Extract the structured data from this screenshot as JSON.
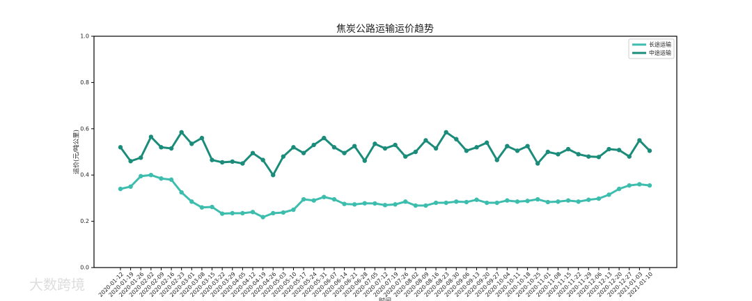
{
  "chart_data": {
    "type": "line",
    "title": "焦炭公路运输运价趋势",
    "x_label": "时间",
    "y_label": "运价(元/吨公里)",
    "watermark": "大数跨境",
    "categories": [
      "2020-01-12",
      "2020-01-19",
      "2020-01-26",
      "2020-02-02",
      "2020-02-09",
      "2020-02-16",
      "2020-02-23",
      "2020-03-01",
      "2020-03-08",
      "2020-03-15",
      "2020-03-22",
      "2020-03-29",
      "2020-04-05",
      "2020-04-12",
      "2020-04-19",
      "2020-04-26",
      "2020-05-03",
      "2020-05-10",
      "2020-05-17",
      "2020-05-24",
      "2020-05-31",
      "2020-06-07",
      "2020-06-14",
      "2020-06-21",
      "2020-06-28",
      "2020-07-05",
      "2020-07-12",
      "2020-07-19",
      "2020-07-26",
      "2020-08-02",
      "2020-08-09",
      "2020-08-16",
      "2020-08-23",
      "2020-08-30",
      "2020-09-06",
      "2020-09-13",
      "2020-09-20",
      "2020-09-27",
      "2020-10-04",
      "2020-10-11",
      "2020-10-18",
      "2020-10-25",
      "2020-11-01",
      "2020-11-08",
      "2020-11-15",
      "2020-11-22",
      "2020-11-29",
      "2020-12-06",
      "2020-12-13",
      "2020-12-20",
      "2020-12-27",
      "2021-01-03",
      "2021-01-10"
    ],
    "series": [
      {
        "name": "长途运输",
        "color": "#3dbdad",
        "values": [
          0.34,
          0.35,
          0.395,
          0.4,
          0.385,
          0.38,
          0.325,
          0.285,
          0.26,
          0.262,
          0.233,
          0.235,
          0.235,
          0.24,
          0.218,
          0.235,
          0.238,
          0.25,
          0.295,
          0.29,
          0.305,
          0.295,
          0.275,
          0.273,
          0.278,
          0.277,
          0.27,
          0.273,
          0.285,
          0.268,
          0.268,
          0.28,
          0.28,
          0.285,
          0.283,
          0.293,
          0.28,
          0.28,
          0.29,
          0.285,
          0.288,
          0.295,
          0.283,
          0.285,
          0.29,
          0.285,
          0.293,
          0.298,
          0.315,
          0.34,
          0.355,
          0.36,
          0.355
        ]
      },
      {
        "name": "中途运输",
        "color": "#1b8c7a",
        "values": [
          0.52,
          0.46,
          0.475,
          0.565,
          0.52,
          0.515,
          0.585,
          0.535,
          0.56,
          0.465,
          0.455,
          0.458,
          0.45,
          0.495,
          0.465,
          0.4,
          0.48,
          0.52,
          0.495,
          0.53,
          0.56,
          0.52,
          0.495,
          0.525,
          0.462,
          0.535,
          0.515,
          0.53,
          0.48,
          0.5,
          0.55,
          0.515,
          0.585,
          0.555,
          0.505,
          0.52,
          0.54,
          0.465,
          0.525,
          0.505,
          0.525,
          0.45,
          0.5,
          0.49,
          0.512,
          0.49,
          0.48,
          0.478,
          0.512,
          0.508,
          0.48,
          0.55,
          0.505
        ]
      }
    ],
    "ylim": [
      0,
      1
    ],
    "yticks": [
      {
        "value": 0,
        "label": "0.0"
      },
      0.2,
      0.4,
      0.6,
      0.8,
      {
        "value": 1,
        "label": "1.0"
      }
    ],
    "legend_position": "upper right",
    "grid": false
  }
}
